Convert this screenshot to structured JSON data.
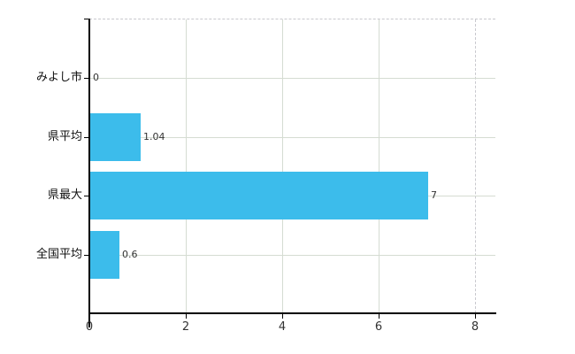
{
  "chart_data": {
    "type": "bar",
    "orientation": "horizontal",
    "title": "",
    "xlabel": "",
    "ylabel": "",
    "categories": [
      "みよし市",
      "県平均",
      "県最大",
      "全国平均"
    ],
    "values": [
      0,
      1.04,
      7,
      0.6
    ],
    "value_labels": [
      "0",
      "1.04",
      "7",
      "0.6"
    ],
    "x_ticks": [
      0,
      2,
      4,
      6,
      8
    ],
    "x_tick_labels": [
      "0",
      "2",
      "4",
      "6",
      "8"
    ],
    "xlim": [
      0,
      8.4
    ],
    "grid": true,
    "legend": "none",
    "colors": {
      "bar": "#3cbceb",
      "gridline": "#d5dcd2",
      "dashed_line": "#c9c9ce",
      "axis": "#000000",
      "category_text": "#111111",
      "value_text": "#333333",
      "tick_text": "#333333",
      "background": "#ffffff"
    }
  }
}
